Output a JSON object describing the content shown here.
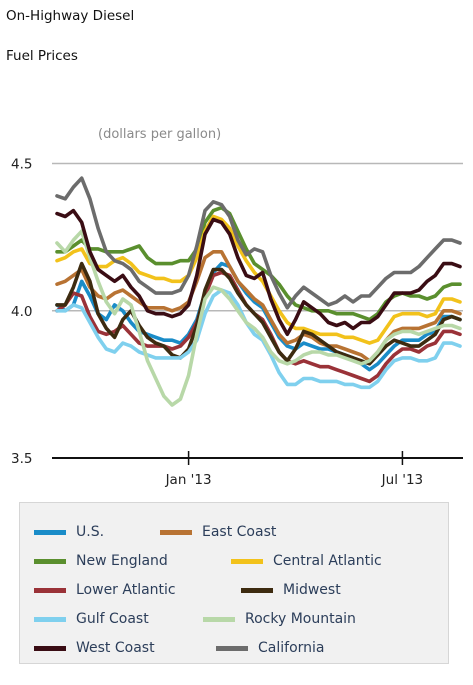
{
  "chart_data": {
    "type": "line",
    "title": "On-Highway Diesel",
    "subtitle": "Fuel Prices",
    "ylabel": "(dollars per gallon)",
    "xlabel": "",
    "ylim": [
      3.5,
      4.55
    ],
    "yticks": [
      "3.5",
      "4.0",
      "4.5"
    ],
    "xticks": [
      {
        "label": "Jan '13",
        "week": 16
      },
      {
        "label": "Jul '13",
        "week": 42
      }
    ],
    "grid": "horizontal",
    "legend_position": "bottom",
    "x_units": "weeks (Oct 2012 – Sep 2013)",
    "series": [
      {
        "name": "U.S.",
        "color": "#1a8cc8",
        "values": [
          4.02,
          4.0,
          4.02,
          4.1,
          4.05,
          3.99,
          3.97,
          4.02,
          4.0,
          3.96,
          3.93,
          3.92,
          3.91,
          3.9,
          3.9,
          3.89,
          3.92,
          3.97,
          4.06,
          4.13,
          4.16,
          4.15,
          4.1,
          4.06,
          4.03,
          4.01,
          3.96,
          3.91,
          3.88,
          3.87,
          3.89,
          3.88,
          3.87,
          3.87,
          3.86,
          3.85,
          3.84,
          3.82,
          3.8,
          3.82,
          3.85,
          3.88,
          3.9,
          3.9,
          3.9,
          3.92,
          3.93,
          3.98,
          3.98,
          3.97
        ]
      },
      {
        "name": "East Coast",
        "color": "#b87333",
        "values": [
          4.09,
          4.1,
          4.12,
          4.14,
          4.08,
          4.05,
          4.04,
          4.06,
          4.07,
          4.05,
          4.03,
          4.01,
          4.01,
          4.01,
          4.0,
          4.01,
          4.03,
          4.1,
          4.18,
          4.2,
          4.2,
          4.15,
          4.1,
          4.07,
          4.04,
          4.02,
          3.97,
          3.92,
          3.89,
          3.9,
          3.92,
          3.91,
          3.89,
          3.88,
          3.88,
          3.87,
          3.86,
          3.85,
          3.83,
          3.86,
          3.9,
          3.93,
          3.94,
          3.94,
          3.94,
          3.95,
          3.96,
          4.0,
          4.0,
          3.99
        ]
      },
      {
        "name": "New England",
        "color": "#5a8f2e",
        "values": [
          4.2,
          4.2,
          4.22,
          4.24,
          4.21,
          4.21,
          4.2,
          4.2,
          4.2,
          4.21,
          4.22,
          4.18,
          4.16,
          4.16,
          4.16,
          4.17,
          4.17,
          4.21,
          4.3,
          4.34,
          4.35,
          4.33,
          4.27,
          4.21,
          4.16,
          4.14,
          4.12,
          4.09,
          4.05,
          4.02,
          4.01,
          4.0,
          4.0,
          4.0,
          3.99,
          3.99,
          3.99,
          3.98,
          3.97,
          3.99,
          4.03,
          4.05,
          4.06,
          4.05,
          4.05,
          4.04,
          4.05,
          4.08,
          4.09,
          4.09
        ]
      },
      {
        "name": "Central Atlantic",
        "color": "#f2c21b",
        "values": [
          4.17,
          4.18,
          4.2,
          4.21,
          4.16,
          4.15,
          4.15,
          4.17,
          4.18,
          4.16,
          4.13,
          4.12,
          4.11,
          4.11,
          4.1,
          4.1,
          4.12,
          4.18,
          4.27,
          4.32,
          4.31,
          4.28,
          4.22,
          4.17,
          4.13,
          4.1,
          4.05,
          4.0,
          3.96,
          3.94,
          3.94,
          3.93,
          3.92,
          3.92,
          3.92,
          3.91,
          3.91,
          3.9,
          3.89,
          3.9,
          3.94,
          3.98,
          3.99,
          3.99,
          3.99,
          3.98,
          3.99,
          4.04,
          4.04,
          4.03
        ]
      },
      {
        "name": "Lower Atlantic",
        "color": "#9a3238",
        "values": [
          4.0,
          4.02,
          4.06,
          4.05,
          3.98,
          3.93,
          3.92,
          3.93,
          3.95,
          3.92,
          3.89,
          3.88,
          3.88,
          3.88,
          3.87,
          3.88,
          3.91,
          3.96,
          4.05,
          4.12,
          4.13,
          4.12,
          4.07,
          4.02,
          3.99,
          3.97,
          3.92,
          3.86,
          3.83,
          3.82,
          3.83,
          3.82,
          3.81,
          3.81,
          3.8,
          3.79,
          3.78,
          3.77,
          3.76,
          3.78,
          3.82,
          3.85,
          3.87,
          3.87,
          3.86,
          3.88,
          3.89,
          3.93,
          3.93,
          3.92
        ]
      },
      {
        "name": "Midwest",
        "color": "#3d2b10",
        "values": [
          4.02,
          4.02,
          4.08,
          4.16,
          4.1,
          3.99,
          3.94,
          3.91,
          3.97,
          4.0,
          3.95,
          3.91,
          3.89,
          3.88,
          3.85,
          3.84,
          3.87,
          3.95,
          4.07,
          4.14,
          4.14,
          4.11,
          4.06,
          4.02,
          3.99,
          3.96,
          3.91,
          3.86,
          3.83,
          3.87,
          3.93,
          3.92,
          3.9,
          3.88,
          3.86,
          3.85,
          3.84,
          3.83,
          3.82,
          3.85,
          3.88,
          3.9,
          3.89,
          3.88,
          3.88,
          3.9,
          3.92,
          3.97,
          3.98,
          3.97
        ]
      },
      {
        "name": "Gulf Coast",
        "color": "#7fd0ee",
        "values": [
          4.0,
          4.0,
          4.02,
          4.01,
          3.96,
          3.91,
          3.87,
          3.86,
          3.89,
          3.88,
          3.86,
          3.85,
          3.84,
          3.84,
          3.84,
          3.84,
          3.86,
          3.9,
          3.99,
          4.05,
          4.07,
          4.06,
          4.02,
          3.96,
          3.92,
          3.9,
          3.85,
          3.79,
          3.75,
          3.75,
          3.77,
          3.77,
          3.76,
          3.76,
          3.76,
          3.75,
          3.75,
          3.74,
          3.74,
          3.76,
          3.8,
          3.83,
          3.84,
          3.84,
          3.83,
          3.83,
          3.84,
          3.89,
          3.89,
          3.88
        ]
      },
      {
        "name": "Rocky Mountain",
        "color": "#b8d8a8",
        "values": [
          4.23,
          4.2,
          4.24,
          4.27,
          4.18,
          4.1,
          4.03,
          3.99,
          4.04,
          4.02,
          3.93,
          3.83,
          3.77,
          3.71,
          3.68,
          3.7,
          3.78,
          3.92,
          4.04,
          4.08,
          4.07,
          4.04,
          4.0,
          3.96,
          3.94,
          3.91,
          3.86,
          3.83,
          3.82,
          3.83,
          3.85,
          3.86,
          3.86,
          3.85,
          3.85,
          3.84,
          3.83,
          3.82,
          3.83,
          3.86,
          3.9,
          3.92,
          3.93,
          3.93,
          3.92,
          3.93,
          3.94,
          3.95,
          3.95,
          3.94
        ]
      },
      {
        "name": "West Coast",
        "color": "#3a0d14",
        "values": [
          4.33,
          4.32,
          4.34,
          4.3,
          4.2,
          4.14,
          4.12,
          4.1,
          4.12,
          4.08,
          4.05,
          4.0,
          3.99,
          3.99,
          3.98,
          3.99,
          4.02,
          4.12,
          4.26,
          4.31,
          4.3,
          4.26,
          4.18,
          4.12,
          4.11,
          4.13,
          4.04,
          3.97,
          3.92,
          3.97,
          4.03,
          4.01,
          3.99,
          3.96,
          3.95,
          3.96,
          3.94,
          3.96,
          3.96,
          3.98,
          4.02,
          4.06,
          4.06,
          4.06,
          4.07,
          4.1,
          4.12,
          4.16,
          4.16,
          4.15
        ]
      },
      {
        "name": "California",
        "color": "#6c6c6c",
        "values": [
          4.39,
          4.38,
          4.42,
          4.45,
          4.38,
          4.28,
          4.2,
          4.17,
          4.16,
          4.14,
          4.1,
          4.08,
          4.06,
          4.06,
          4.06,
          4.07,
          4.12,
          4.22,
          4.34,
          4.37,
          4.36,
          4.32,
          4.24,
          4.19,
          4.21,
          4.2,
          4.12,
          4.06,
          4.01,
          4.05,
          4.08,
          4.06,
          4.04,
          4.02,
          4.03,
          4.05,
          4.03,
          4.05,
          4.05,
          4.08,
          4.11,
          4.13,
          4.13,
          4.13,
          4.15,
          4.18,
          4.21,
          4.24,
          4.24,
          4.23
        ]
      }
    ]
  }
}
